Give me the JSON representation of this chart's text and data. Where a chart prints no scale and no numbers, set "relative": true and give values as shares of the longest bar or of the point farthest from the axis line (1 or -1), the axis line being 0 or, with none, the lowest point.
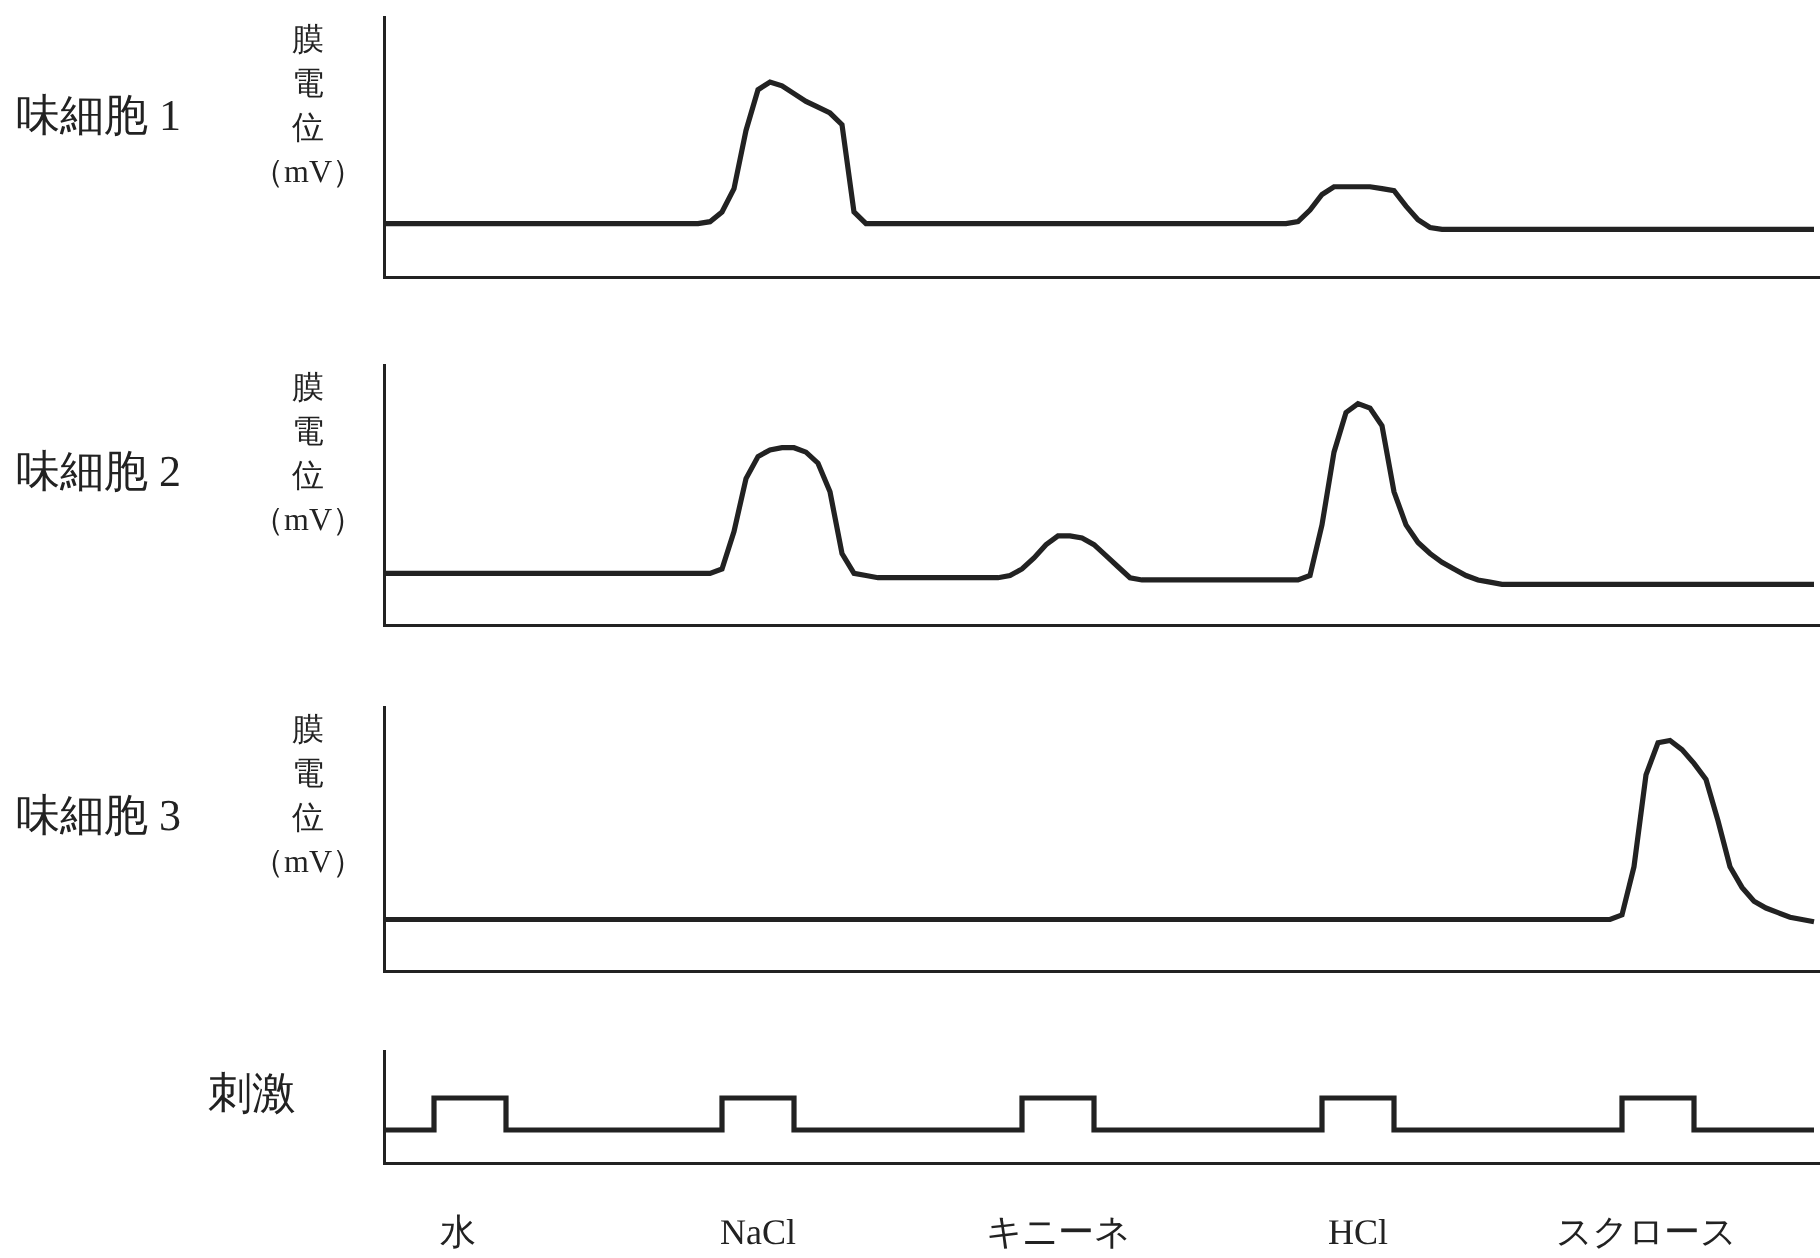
{
  "chart_data": [
    {
      "type": "line",
      "title": "味細胞 1",
      "ylabel": "膜電位（mV）",
      "relative": true,
      "tick_labels": false,
      "categories": [
        null,
        null,
        null,
        null,
        null,
        null,
        null,
        null,
        null,
        null,
        null,
        null,
        null,
        null,
        null,
        null,
        null,
        null,
        null,
        null,
        null,
        null,
        null,
        null,
        null,
        null,
        null,
        null,
        null,
        null,
        null,
        null,
        null,
        null,
        null,
        null,
        null,
        null,
        null,
        null,
        null,
        null,
        null,
        null,
        null,
        null,
        null,
        null,
        null,
        null,
        null,
        null,
        null,
        null,
        null,
        null,
        null,
        null,
        null,
        null,
        null,
        null,
        null,
        null,
        null,
        null,
        null,
        null,
        null,
        null,
        null,
        null,
        null,
        null,
        null,
        null,
        null,
        null,
        null,
        null,
        null,
        null,
        null,
        null,
        null,
        null,
        null,
        null,
        null,
        null,
        null,
        null,
        null,
        null,
        null,
        null,
        null,
        null,
        null,
        null,
        null,
        null,
        null,
        null,
        null,
        null,
        null,
        null,
        null,
        null,
        null,
        null,
        null,
        null,
        null,
        null,
        null,
        null,
        null,
        null
      ],
      "series": [
        {
          "color": "#222222",
          "values": [
            0.27,
            0.27,
            0.27,
            0.27,
            0.27,
            0.27,
            0.27,
            0.27,
            0.27,
            0.27,
            0.27,
            0.27,
            0.27,
            0.27,
            0.27,
            0.27,
            0.27,
            0.27,
            0.27,
            0.27,
            0.27,
            0.27,
            0.27,
            0.27,
            0.27,
            0.27,
            0.27,
            0.28,
            0.33,
            0.45,
            0.75,
            0.96,
            1,
            0.98,
            0.94,
            0.9,
            0.87,
            0.84,
            0.78,
            0.33,
            0.27,
            0.27,
            0.27,
            0.27,
            0.27,
            0.27,
            0.27,
            0.27,
            0.27,
            0.27,
            0.27,
            0.27,
            0.27,
            0.27,
            0.27,
            0.27,
            0.27,
            0.27,
            0.27,
            0.27,
            0.27,
            0.27,
            0.27,
            0.27,
            0.27,
            0.27,
            0.27,
            0.27,
            0.27,
            0.27,
            0.27,
            0.27,
            0.27,
            0.27,
            0.27,
            0.27,
            0.28,
            0.34,
            0.42,
            0.46,
            0.46,
            0.46,
            0.46,
            0.45,
            0.44,
            0.36,
            0.29,
            0.25,
            0.24,
            0.24,
            0.24,
            0.24,
            0.24,
            0.24,
            0.24,
            0.24,
            0.24,
            0.24,
            0.24,
            0.24,
            0.24,
            0.24,
            0.24,
            0.24,
            0.24,
            0.24,
            0.24,
            0.24,
            0.24,
            0.24,
            0.24,
            0.24,
            0.24,
            0.24,
            0.24,
            0.24,
            0.24,
            0.24,
            0.24,
            0.24
          ]
        }
      ]
    },
    {
      "type": "line",
      "title": "味細胞 2",
      "ylabel": "膜電位（mV）",
      "relative": true,
      "tick_labels": false,
      "categories": [
        null,
        null,
        null,
        null,
        null,
        null,
        null,
        null,
        null,
        null,
        null,
        null,
        null,
        null,
        null,
        null,
        null,
        null,
        null,
        null,
        null,
        null,
        null,
        null,
        null,
        null,
        null,
        null,
        null,
        null,
        null,
        null,
        null,
        null,
        null,
        null,
        null,
        null,
        null,
        null,
        null,
        null,
        null,
        null,
        null,
        null,
        null,
        null,
        null,
        null,
        null,
        null,
        null,
        null,
        null,
        null,
        null,
        null,
        null,
        null,
        null,
        null,
        null,
        null,
        null,
        null,
        null,
        null,
        null,
        null,
        null,
        null,
        null,
        null,
        null,
        null,
        null,
        null,
        null,
        null,
        null,
        null,
        null,
        null,
        null,
        null,
        null,
        null,
        null,
        null,
        null,
        null,
        null,
        null,
        null,
        null,
        null,
        null,
        null,
        null,
        null,
        null,
        null,
        null,
        null,
        null,
        null,
        null,
        null,
        null,
        null,
        null,
        null,
        null,
        null,
        null,
        null,
        null,
        null,
        null
      ],
      "series": [
        {
          "color": "#222222",
          "values": [
            0.23,
            0.23,
            0.23,
            0.23,
            0.23,
            0.23,
            0.23,
            0.23,
            0.23,
            0.23,
            0.23,
            0.23,
            0.23,
            0.23,
            0.23,
            0.23,
            0.23,
            0.23,
            0.23,
            0.23,
            0.23,
            0.23,
            0.23,
            0.23,
            0.23,
            0.23,
            0.23,
            0.23,
            0.25,
            0.42,
            0.66,
            0.76,
            0.79,
            0.8,
            0.8,
            0.78,
            0.73,
            0.6,
            0.32,
            0.23,
            0.22,
            0.21,
            0.21,
            0.21,
            0.21,
            0.21,
            0.21,
            0.21,
            0.21,
            0.21,
            0.21,
            0.21,
            0.22,
            0.25,
            0.3,
            0.36,
            0.4,
            0.4,
            0.39,
            0.36,
            0.31,
            0.26,
            0.21,
            0.2,
            0.2,
            0.2,
            0.2,
            0.2,
            0.2,
            0.2,
            0.2,
            0.2,
            0.2,
            0.2,
            0.2,
            0.2,
            0.2,
            0.22,
            0.45,
            0.78,
            0.96,
            1,
            0.98,
            0.9,
            0.6,
            0.45,
            0.37,
            0.32,
            0.28,
            0.25,
            0.22,
            0.2,
            0.19,
            0.18,
            0.18,
            0.18,
            0.18,
            0.18,
            0.18,
            0.18,
            0.18,
            0.18,
            0.18,
            0.18,
            0.18,
            0.18,
            0.18,
            0.18,
            0.18,
            0.18,
            0.18,
            0.18,
            0.18,
            0.18,
            0.18,
            0.18,
            0.18,
            0.18,
            0.18,
            0.18
          ]
        }
      ]
    },
    {
      "type": "line",
      "title": "味細胞 3",
      "ylabel": "膜電位（mV）",
      "relative": true,
      "tick_labels": false,
      "categories": [
        null,
        null,
        null,
        null,
        null,
        null,
        null,
        null,
        null,
        null,
        null,
        null,
        null,
        null,
        null,
        null,
        null,
        null,
        null,
        null,
        null,
        null,
        null,
        null,
        null,
        null,
        null,
        null,
        null,
        null,
        null,
        null,
        null,
        null,
        null,
        null,
        null,
        null,
        null,
        null,
        null,
        null,
        null,
        null,
        null,
        null,
        null,
        null,
        null,
        null,
        null,
        null,
        null,
        null,
        null,
        null,
        null,
        null,
        null,
        null,
        null,
        null,
        null,
        null,
        null,
        null,
        null,
        null,
        null,
        null,
        null,
        null,
        null,
        null,
        null,
        null,
        null,
        null,
        null,
        null,
        null,
        null,
        null,
        null,
        null,
        null,
        null,
        null,
        null,
        null,
        null,
        null,
        null,
        null,
        null,
        null,
        null,
        null,
        null,
        null,
        null,
        null,
        null,
        null,
        null,
        null,
        null,
        null,
        null,
        null,
        null,
        null,
        null,
        null,
        null,
        null,
        null,
        null,
        null,
        null
      ],
      "series": [
        {
          "color": "#222222",
          "values": [
            0.22,
            0.22,
            0.22,
            0.22,
            0.22,
            0.22,
            0.22,
            0.22,
            0.22,
            0.22,
            0.22,
            0.22,
            0.22,
            0.22,
            0.22,
            0.22,
            0.22,
            0.22,
            0.22,
            0.22,
            0.22,
            0.22,
            0.22,
            0.22,
            0.22,
            0.22,
            0.22,
            0.22,
            0.22,
            0.22,
            0.22,
            0.22,
            0.22,
            0.22,
            0.22,
            0.22,
            0.22,
            0.22,
            0.22,
            0.22,
            0.22,
            0.22,
            0.22,
            0.22,
            0.22,
            0.22,
            0.22,
            0.22,
            0.22,
            0.22,
            0.22,
            0.22,
            0.22,
            0.22,
            0.22,
            0.22,
            0.22,
            0.22,
            0.22,
            0.22,
            0.22,
            0.22,
            0.22,
            0.22,
            0.22,
            0.22,
            0.22,
            0.22,
            0.22,
            0.22,
            0.22,
            0.22,
            0.22,
            0.22,
            0.22,
            0.22,
            0.22,
            0.22,
            0.22,
            0.22,
            0.22,
            0.22,
            0.22,
            0.22,
            0.22,
            0.22,
            0.22,
            0.22,
            0.22,
            0.22,
            0.22,
            0.22,
            0.22,
            0.22,
            0.22,
            0.22,
            0.22,
            0.22,
            0.22,
            0.22,
            0.22,
            0.22,
            0.22,
            0.24,
            0.45,
            0.85,
            0.99,
            1,
            0.96,
            0.9,
            0.83,
            0.65,
            0.45,
            0.36,
            0.3,
            0.27,
            0.25,
            0.23,
            0.22,
            0.21
          ]
        }
      ]
    },
    {
      "type": "step",
      "ylabel": "刺激",
      "relative": true,
      "tick_labels": "x",
      "categories": [
        null,
        null,
        null,
        null,
        null,
        null,
        "水",
        null,
        null,
        null,
        null,
        null,
        null,
        null,
        null,
        null,
        null,
        null,
        null,
        null,
        null,
        null,
        null,
        null,
        null,
        null,
        null,
        null,
        null,
        null,
        null,
        "NaCl",
        null,
        null,
        null,
        null,
        null,
        null,
        null,
        null,
        null,
        null,
        null,
        null,
        null,
        null,
        null,
        null,
        null,
        null,
        null,
        null,
        null,
        null,
        null,
        null,
        "キニーネ",
        null,
        null,
        null,
        null,
        null,
        null,
        null,
        null,
        null,
        null,
        null,
        null,
        null,
        null,
        null,
        null,
        null,
        null,
        null,
        null,
        null,
        null,
        null,
        null,
        "HCl",
        null,
        null,
        null,
        null,
        null,
        null,
        null,
        null,
        null,
        null,
        null,
        null,
        null,
        null,
        null,
        null,
        null,
        null,
        null,
        null,
        null,
        null,
        null,
        "スクロース",
        null,
        null,
        null,
        null,
        null,
        null,
        null,
        null,
        null,
        null,
        null,
        null,
        null,
        null
      ],
      "series": [
        {
          "color": "#222222",
          "values": [
            0.5,
            0.5,
            0.5,
            0.5,
            1,
            1,
            1,
            1,
            1,
            1,
            0.5,
            0.5,
            0.5,
            0.5,
            0.5,
            0.5,
            0.5,
            0.5,
            0.5,
            0.5,
            0.5,
            0.5,
            0.5,
            0.5,
            0.5,
            0.5,
            0.5,
            0.5,
            1,
            1,
            1,
            1,
            1,
            1,
            0.5,
            0.5,
            0.5,
            0.5,
            0.5,
            0.5,
            0.5,
            0.5,
            0.5,
            0.5,
            0.5,
            0.5,
            0.5,
            0.5,
            0.5,
            0.5,
            0.5,
            0.5,
            0.5,
            1,
            1,
            1,
            1,
            1,
            1,
            0.5,
            0.5,
            0.5,
            0.5,
            0.5,
            0.5,
            0.5,
            0.5,
            0.5,
            0.5,
            0.5,
            0.5,
            0.5,
            0.5,
            0.5,
            0.5,
            0.5,
            0.5,
            0.5,
            1,
            1,
            1,
            1,
            1,
            1,
            0.5,
            0.5,
            0.5,
            0.5,
            0.5,
            0.5,
            0.5,
            0.5,
            0.5,
            0.5,
            0.5,
            0.5,
            0.5,
            0.5,
            0.5,
            0.5,
            0.5,
            0.5,
            0.5,
            1,
            1,
            1,
            1,
            1,
            1,
            0.5,
            0.5,
            0.5,
            0.5,
            0.5,
            0.5,
            0.5,
            0.5,
            0.5,
            0.5,
            0.5
          ]
        }
      ]
    }
  ]
}
